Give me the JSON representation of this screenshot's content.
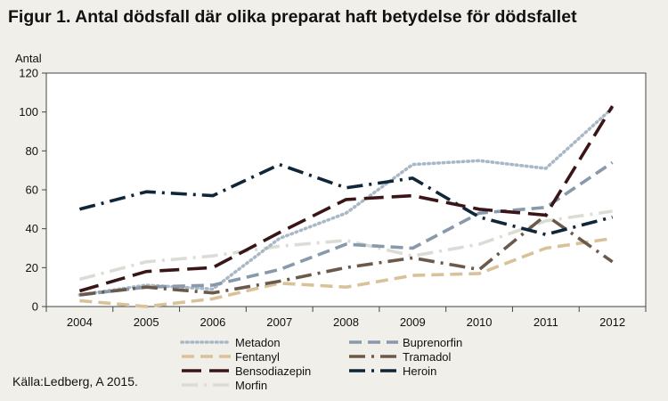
{
  "title": "Figur 1. Antal dödsfall där olika preparat haft betydelse för dödsfallet",
  "source": "Källa:Ledberg, A 2015.",
  "chart_data": {
    "type": "line",
    "title": "Figur 1. Antal dödsfall där olika preparat haft betydelse för dödsfallet",
    "ylabel": "Antal",
    "xlabel": "",
    "x": [
      "2004",
      "2005",
      "2006",
      "2007",
      "2008",
      "2009",
      "2010",
      "2011",
      "2012"
    ],
    "ylim": [
      0,
      120
    ],
    "yticks": [
      0,
      20,
      40,
      60,
      80,
      100,
      120
    ],
    "grid": false,
    "legend": "bottom",
    "series": [
      {
        "name": "Metadon",
        "color": "#a9b8c6",
        "dash": "dotted",
        "values": [
          6,
          11,
          9,
          35,
          48,
          73,
          75,
          71,
          102
        ]
      },
      {
        "name": "Buprenorfin",
        "color": "#8799aa",
        "dash": "dashed",
        "values": [
          6,
          10,
          11,
          19,
          32,
          30,
          48,
          51,
          74
        ]
      },
      {
        "name": "Fentanyl",
        "color": "#d9c29a",
        "dash": "dashed",
        "values": [
          3,
          0,
          4,
          12,
          10,
          16,
          17,
          30,
          35
        ]
      },
      {
        "name": "Tramadol",
        "color": "#6b5a4c",
        "dash": "dashdot",
        "values": [
          6,
          10,
          7,
          13,
          20,
          25,
          19,
          47,
          23
        ]
      },
      {
        "name": "Bensodiazepin",
        "color": "#3a1518",
        "dash": "longdash",
        "values": [
          8,
          18,
          20,
          38,
          55,
          57,
          50,
          47,
          103
        ]
      },
      {
        "name": "Heroin",
        "color": "#0f2538",
        "dash": "dashdot",
        "values": [
          50,
          59,
          57,
          73,
          61,
          66,
          46,
          37,
          46
        ]
      },
      {
        "name": "Morfin",
        "color": "#dcdcd6",
        "dash": "dashdot",
        "values": [
          14,
          23,
          26,
          31,
          34,
          26,
          32,
          44,
          49
        ]
      }
    ]
  }
}
